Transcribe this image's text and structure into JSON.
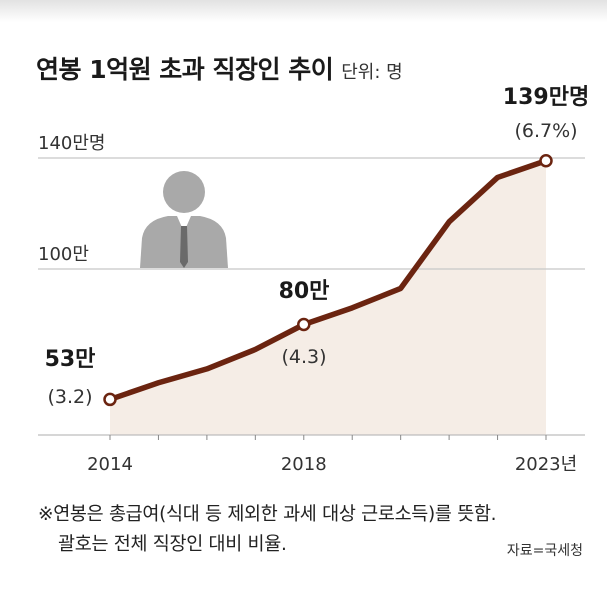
{
  "title": "연봉 1억원 초과 직장인 추이",
  "unit_label": "단위: 명",
  "footnote": {
    "line1": "※연봉은 총급여(식대 등 제외한 과세 대상 근로소득)를 뜻함.",
    "line2": "괄호는 전체 직장인 대비 비율."
  },
  "source": "자료=국세청",
  "colors": {
    "line": "#6b2410",
    "area": "#f5ede6",
    "grid": "#c8c8c8",
    "icon": "#a9a9a9"
  },
  "icon": "person-silhouette-icon",
  "chart_data": {
    "type": "area",
    "x": [
      2014,
      2015,
      2016,
      2017,
      2018,
      2019,
      2020,
      2021,
      2022,
      2023
    ],
    "values": [
      53,
      59,
      64,
      71,
      80,
      86,
      93,
      117,
      133,
      139
    ],
    "series": [
      {
        "name": "",
        "values": [
          53,
          59,
          64,
          71,
          80,
          86,
          93,
          117,
          133,
          139
        ]
      }
    ],
    "y_tick_labels": [
      "140만명",
      "100만"
    ],
    "y_ticks": [
      140,
      100
    ],
    "x_tick_labels": [
      "2014",
      "2018",
      "2023년"
    ],
    "x_ticks": [
      2014,
      2018,
      2023
    ],
    "ylim": [
      40,
      145
    ],
    "grid": true,
    "annotations": [
      {
        "x": 2014,
        "value_label": "53만",
        "ratio_label": "(3.2)"
      },
      {
        "x": 2018,
        "value_label": "80만",
        "ratio_label": "(4.3)"
      },
      {
        "x": 2023,
        "value_label": "139만명",
        "ratio_label": "(6.7%)"
      }
    ],
    "xlabel": "",
    "ylabel": ""
  }
}
